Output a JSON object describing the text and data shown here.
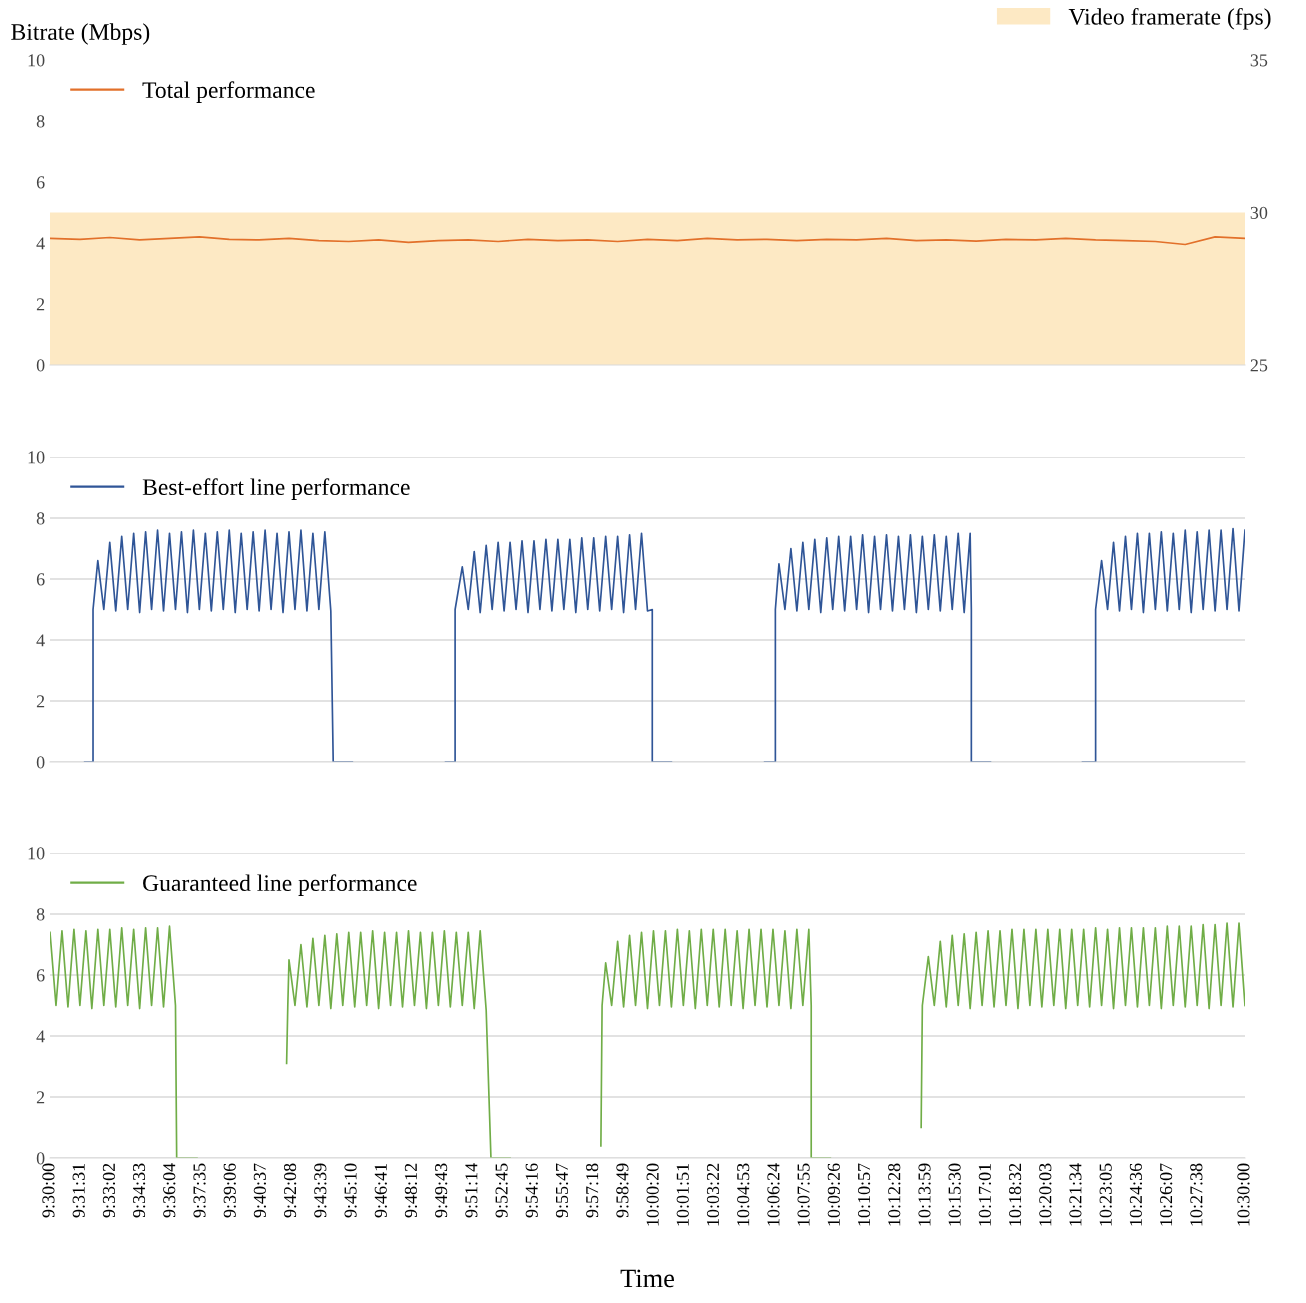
{
  "chart_data": [
    {
      "type": "line",
      "ylabel": "Bitrate (Mbps)",
      "xlim": [
        9.5,
        10.5
      ],
      "ylim": [
        0,
        10
      ],
      "yticks": [
        0,
        2,
        4,
        6,
        8,
        10
      ],
      "y2lim": [
        25,
        35
      ],
      "y2ticks": [
        25,
        30,
        35
      ],
      "tick_labels": "y",
      "legend": "top left",
      "grid": false,
      "series": [
        {
          "name": "Video framerate (fps)",
          "type": "area",
          "axis": "y2",
          "color": "#fde9c4",
          "x": [
            9.5,
            10.5
          ],
          "values": [
            30,
            30
          ]
        },
        {
          "name": "Total performance",
          "color": "#e2702a",
          "x": [
            9.5,
            9.525,
            9.55,
            9.575,
            9.6,
            9.625,
            9.65,
            9.675,
            9.7,
            9.725,
            9.75,
            9.775,
            9.8,
            9.825,
            9.85,
            9.875,
            9.9,
            9.925,
            9.95,
            9.975,
            10.0,
            10.025,
            10.05,
            10.075,
            10.1,
            10.125,
            10.15,
            10.175,
            10.2,
            10.225,
            10.25,
            10.275,
            10.3,
            10.325,
            10.35,
            10.375,
            10.4,
            10.425,
            10.45,
            10.475,
            10.5
          ],
          "values": [
            4.15,
            4.12,
            4.18,
            4.1,
            4.15,
            4.2,
            4.12,
            4.1,
            4.15,
            4.08,
            4.05,
            4.1,
            4.02,
            4.08,
            4.1,
            4.05,
            4.12,
            4.08,
            4.1,
            4.05,
            4.12,
            4.08,
            4.15,
            4.1,
            4.12,
            4.08,
            4.12,
            4.1,
            4.15,
            4.08,
            4.1,
            4.06,
            4.12,
            4.1,
            4.15,
            4.1,
            4.08,
            4.05,
            3.95,
            4.2,
            4.15
          ]
        }
      ]
    },
    {
      "type": "line",
      "xlim": [
        9.5,
        10.5
      ],
      "ylim": [
        0,
        10
      ],
      "yticks": [
        0,
        2,
        4,
        6,
        8,
        10
      ],
      "tick_labels": "y",
      "legend": "top left",
      "grid": "y",
      "series": [
        {
          "name": "Best-effort line performance",
          "color": "#2f5597",
          "x": [
            9.529,
            9.536,
            9.536,
            9.54,
            9.545,
            9.55,
            9.555,
            9.56,
            9.565,
            9.57,
            9.575,
            9.58,
            9.585,
            9.59,
            9.595,
            9.6,
            9.605,
            9.61,
            9.615,
            9.62,
            9.625,
            9.63,
            9.635,
            9.64,
            9.645,
            9.65,
            9.655,
            9.66,
            9.665,
            9.67,
            9.675,
            9.68,
            9.685,
            9.69,
            9.695,
            9.7,
            9.705,
            9.71,
            9.715,
            9.72,
            9.725,
            9.73,
            9.735,
            9.737,
            9.753,
            9.79,
            9.831,
            9.839,
            9.839,
            9.845,
            9.85,
            9.855,
            9.86,
            9.865,
            9.87,
            9.875,
            9.88,
            9.885,
            9.89,
            9.895,
            9.9,
            9.905,
            9.91,
            9.915,
            9.92,
            9.925,
            9.93,
            9.935,
            9.94,
            9.945,
            9.95,
            9.955,
            9.96,
            9.965,
            9.97,
            9.975,
            9.98,
            9.985,
            9.99,
            9.995,
            10.0,
            10.004,
            10.004,
            10.02,
            10.06,
            10.098,
            10.107,
            10.107,
            10.11,
            10.115,
            10.12,
            10.125,
            10.13,
            10.135,
            10.14,
            10.145,
            10.15,
            10.155,
            10.16,
            10.165,
            10.17,
            10.175,
            10.18,
            10.185,
            10.19,
            10.195,
            10.2,
            10.205,
            10.21,
            10.215,
            10.22,
            10.225,
            10.23,
            10.235,
            10.24,
            10.245,
            10.25,
            10.255,
            10.26,
            10.265,
            10.27,
            10.271,
            10.271,
            10.287,
            10.33,
            10.364,
            10.375,
            10.375,
            10.38,
            10.385,
            10.39,
            10.395,
            10.4,
            10.405,
            10.41,
            10.415,
            10.42,
            10.425,
            10.43,
            10.435,
            10.44,
            10.445,
            10.45,
            10.455,
            10.46,
            10.465,
            10.47,
            10.475,
            10.48,
            10.485,
            10.49,
            10.495,
            10.5
          ],
          "values": [
            0,
            0,
            5,
            6.6,
            5,
            7.2,
            4.95,
            7.4,
            5,
            7.5,
            4.9,
            7.55,
            5,
            7.6,
            4.95,
            7.5,
            5,
            7.55,
            4.9,
            7.6,
            5,
            7.5,
            4.95,
            7.55,
            5,
            7.6,
            4.9,
            7.5,
            5,
            7.55,
            4.95,
            7.6,
            5,
            7.5,
            4.9,
            7.55,
            5,
            7.6,
            4.95,
            7.5,
            5,
            7.55,
            4.95,
            0,
            0,
            null,
            0,
            0,
            5,
            6.4,
            5,
            6.9,
            4.9,
            7.1,
            5,
            7.2,
            4.95,
            7.2,
            5,
            7.25,
            4.9,
            7.25,
            5,
            7.3,
            4.95,
            7.3,
            5,
            7.3,
            4.9,
            7.35,
            5,
            7.35,
            4.95,
            7.4,
            5,
            7.4,
            4.9,
            7.45,
            5,
            7.5,
            4.95,
            5,
            0,
            0,
            null,
            0,
            0,
            5,
            6.5,
            5,
            7.0,
            4.95,
            7.2,
            5,
            7.3,
            4.9,
            7.35,
            5,
            7.4,
            4.95,
            7.4,
            5,
            7.45,
            4.9,
            7.4,
            5,
            7.45,
            4.95,
            7.4,
            5,
            7.45,
            4.9,
            7.4,
            5,
            7.45,
            4.95,
            7.4,
            5,
            7.5,
            4.9,
            7.5,
            5,
            0,
            0,
            null,
            0,
            0,
            5,
            6.6,
            5,
            7.2,
            4.95,
            7.4,
            5,
            7.5,
            4.9,
            7.5,
            5,
            7.55,
            4.95,
            7.5,
            5,
            7.6,
            4.9,
            7.55,
            5,
            7.6,
            4.95,
            7.6,
            5,
            7.65,
            4.95,
            7.6
          ]
        }
      ]
    },
    {
      "type": "line",
      "xlabel": "Time",
      "xlim": [
        9.5,
        10.5
      ],
      "ylim": [
        0,
        10
      ],
      "yticks": [
        0,
        2,
        4,
        6,
        8,
        10
      ],
      "legend": "top left",
      "grid": "y",
      "xticks": [
        {
          "value": 9.5,
          "label": "9:30:00"
        },
        {
          "value": 9.5253,
          "label": "9:31:31"
        },
        {
          "value": 9.5506,
          "label": "9:33:02"
        },
        {
          "value": 9.5758,
          "label": "9:34:33"
        },
        {
          "value": 9.6011,
          "label": "9:36:04"
        },
        {
          "value": 9.6264,
          "label": "9:37:35"
        },
        {
          "value": 9.6517,
          "label": "9:39:06"
        },
        {
          "value": 9.6769,
          "label": "9:40:37"
        },
        {
          "value": 9.7022,
          "label": "9:42:08"
        },
        {
          "value": 9.7275,
          "label": "9:43:39"
        },
        {
          "value": 9.7528,
          "label": "9:45:10"
        },
        {
          "value": 9.7781,
          "label": "9:46:41"
        },
        {
          "value": 9.8033,
          "label": "9:48:12"
        },
        {
          "value": 9.8286,
          "label": "9:49:43"
        },
        {
          "value": 9.8539,
          "label": "9:51:14"
        },
        {
          "value": 9.8792,
          "label": "9:52:45"
        },
        {
          "value": 9.9044,
          "label": "9:54:16"
        },
        {
          "value": 9.9297,
          "label": "9:55:47"
        },
        {
          "value": 9.955,
          "label": "9:57:18"
        },
        {
          "value": 9.9803,
          "label": "9:58:49"
        },
        {
          "value": 10.0056,
          "label": "10:00:20"
        },
        {
          "value": 10.0308,
          "label": "10:01:51"
        },
        {
          "value": 10.0561,
          "label": "10:03:22"
        },
        {
          "value": 10.0814,
          "label": "10:04:53"
        },
        {
          "value": 10.1067,
          "label": "10:06:24"
        },
        {
          "value": 10.1319,
          "label": "10:07:55"
        },
        {
          "value": 10.1572,
          "label": "10:09:26"
        },
        {
          "value": 10.1825,
          "label": "10:10:57"
        },
        {
          "value": 10.2078,
          "label": "10:12:28"
        },
        {
          "value": 10.2331,
          "label": "10:13:59"
        },
        {
          "value": 10.2583,
          "label": "10:15:30"
        },
        {
          "value": 10.2836,
          "label": "10:17:01"
        },
        {
          "value": 10.3089,
          "label": "10:18:32"
        },
        {
          "value": 10.3342,
          "label": "10:20:03"
        },
        {
          "value": 10.3594,
          "label": "10:21:34"
        },
        {
          "value": 10.3847,
          "label": "10:23:05"
        },
        {
          "value": 10.41,
          "label": "10:24:36"
        },
        {
          "value": 10.4353,
          "label": "10:26:07"
        },
        {
          "value": 10.4606,
          "label": "10:27:38"
        },
        {
          "value": 10.5,
          "label": "10:30:00"
        }
      ],
      "series": [
        {
          "name": "Guaranteed line performance",
          "color": "#70ad47",
          "x": [
            9.5,
            9.505,
            9.51,
            9.515,
            9.52,
            9.525,
            9.53,
            9.535,
            9.54,
            9.545,
            9.55,
            9.555,
            9.56,
            9.565,
            9.57,
            9.575,
            9.58,
            9.585,
            9.59,
            9.595,
            9.6,
            9.605,
            9.606,
            9.623,
            9.66,
            9.698,
            9.699,
            9.7,
            9.705,
            9.71,
            9.715,
            9.72,
            9.725,
            9.73,
            9.735,
            9.74,
            9.745,
            9.75,
            9.755,
            9.76,
            9.765,
            9.77,
            9.775,
            9.78,
            9.785,
            9.79,
            9.795,
            9.8,
            9.805,
            9.81,
            9.815,
            9.82,
            9.825,
            9.83,
            9.835,
            9.84,
            9.845,
            9.85,
            9.855,
            9.86,
            9.865,
            9.869,
            9.885,
            9.92,
            9.961,
            9.962,
            9.965,
            9.97,
            9.975,
            9.98,
            9.985,
            9.99,
            9.995,
            10.0,
            10.005,
            10.01,
            10.015,
            10.02,
            10.025,
            10.03,
            10.035,
            10.04,
            10.045,
            10.05,
            10.055,
            10.06,
            10.065,
            10.07,
            10.075,
            10.08,
            10.085,
            10.09,
            10.095,
            10.1,
            10.105,
            10.11,
            10.115,
            10.12,
            10.125,
            10.13,
            10.135,
            10.137,
            10.137,
            10.153,
            10.19,
            10.229,
            10.23,
            10.235,
            10.24,
            10.245,
            10.25,
            10.255,
            10.26,
            10.265,
            10.27,
            10.275,
            10.28,
            10.285,
            10.29,
            10.295,
            10.3,
            10.305,
            10.31,
            10.315,
            10.32,
            10.325,
            10.33,
            10.335,
            10.34,
            10.345,
            10.35,
            10.355,
            10.36,
            10.365,
            10.37,
            10.375,
            10.38,
            10.385,
            10.39,
            10.395,
            10.4,
            10.405,
            10.41,
            10.415,
            10.42,
            10.425,
            10.43,
            10.435,
            10.44,
            10.445,
            10.45,
            10.455,
            10.46,
            10.465,
            10.47,
            10.475,
            10.48,
            10.485,
            10.49,
            10.495,
            10.5
          ],
          "values": [
            7.4,
            5,
            7.45,
            4.95,
            7.5,
            5,
            7.45,
            4.9,
            7.5,
            5,
            7.5,
            4.95,
            7.55,
            5,
            7.5,
            4.9,
            7.55,
            5,
            7.55,
            4.95,
            7.6,
            5,
            0,
            0,
            null,
            3.1,
            5,
            6.5,
            5,
            7.0,
            4.95,
            7.2,
            5,
            7.3,
            4.9,
            7.35,
            5,
            7.4,
            4.95,
            7.4,
            5,
            7.45,
            4.9,
            7.4,
            5,
            7.4,
            4.95,
            7.45,
            5,
            7.4,
            4.9,
            7.4,
            5,
            7.45,
            4.95,
            7.4,
            5,
            7.4,
            4.9,
            7.45,
            4.85,
            0,
            0,
            null,
            0.4,
            5,
            6.4,
            5,
            7.1,
            4.95,
            7.3,
            5,
            7.4,
            4.9,
            7.45,
            5,
            7.45,
            4.95,
            7.5,
            5,
            7.45,
            4.9,
            7.5,
            5,
            7.5,
            4.95,
            7.5,
            5,
            7.45,
            4.9,
            7.5,
            5,
            7.5,
            4.95,
            7.5,
            5,
            7.45,
            4.9,
            7.5,
            5,
            7.5,
            5,
            0,
            0,
            null,
            1.0,
            5,
            6.6,
            5,
            7.1,
            4.95,
            7.3,
            5,
            7.35,
            4.9,
            7.4,
            5,
            7.45,
            4.95,
            7.45,
            5,
            7.5,
            4.9,
            7.5,
            5,
            7.5,
            4.95,
            7.5,
            5,
            7.5,
            4.9,
            7.5,
            5,
            7.5,
            4.95,
            7.55,
            5,
            7.5,
            4.9,
            7.55,
            5,
            7.55,
            4.95,
            7.55,
            5,
            7.55,
            4.9,
            7.6,
            5,
            7.6,
            4.95,
            7.6,
            5,
            7.65,
            4.9,
            7.65,
            5,
            7.7,
            4.95,
            7.7,
            5
          ]
        }
      ]
    }
  ]
}
